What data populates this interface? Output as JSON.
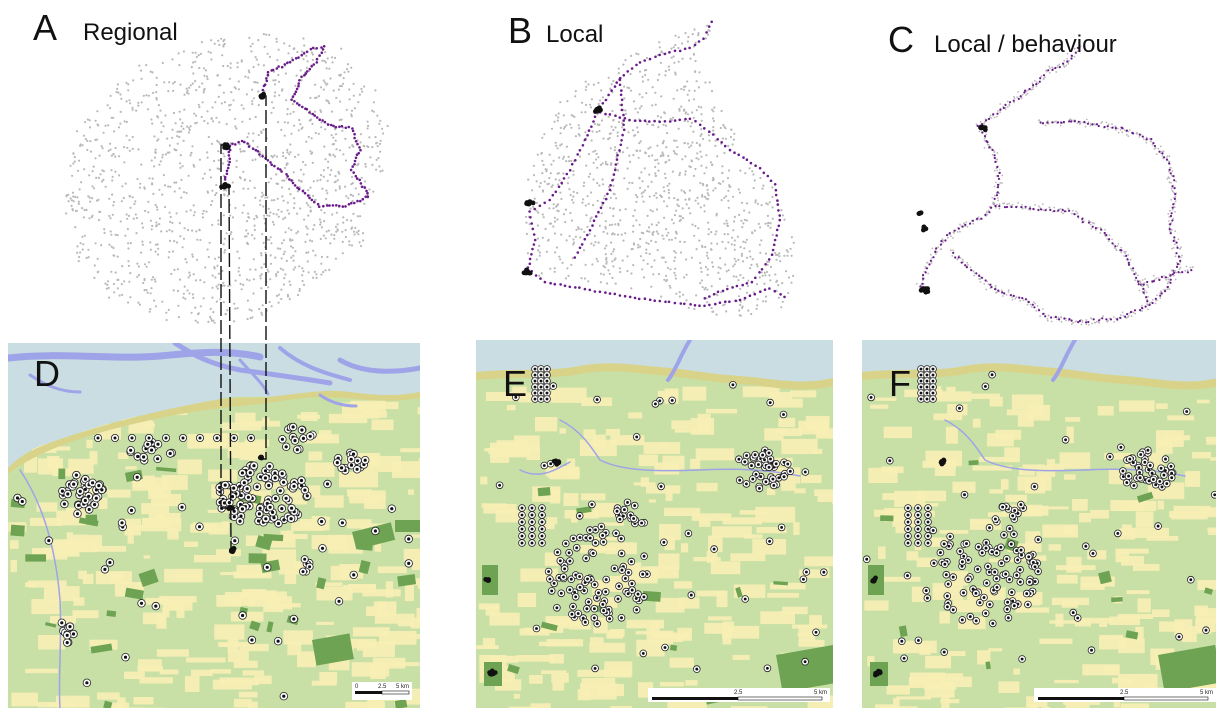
{
  "panels": [
    {
      "letter": "A",
      "title": "Regional"
    },
    {
      "letter": "B",
      "title": "Local"
    },
    {
      "letter": "C",
      "title": "Local / behaviour"
    },
    {
      "letter": "D",
      "title": ""
    },
    {
      "letter": "E",
      "title": ""
    },
    {
      "letter": "F",
      "title": ""
    }
  ],
  "scalebars": {
    "D": {
      "start": "0",
      "mid": "2.5",
      "end": "5 km"
    },
    "E": {
      "mid": "2.5",
      "end": "5 km"
    },
    "F": {
      "mid": "2.5",
      "end": "5 km"
    }
  },
  "colors": {
    "background_points": "#b9b9b9",
    "path_points": "#6a1b8a",
    "cluster_points": "#111111",
    "water_sea": "#c9dde3",
    "water_channel": "#9fa3e8",
    "land_pasture": "#c8e0a6",
    "land_arable": "#f7eeb4",
    "forest": "#6ea354",
    "dike": "#d9d38a"
  }
}
